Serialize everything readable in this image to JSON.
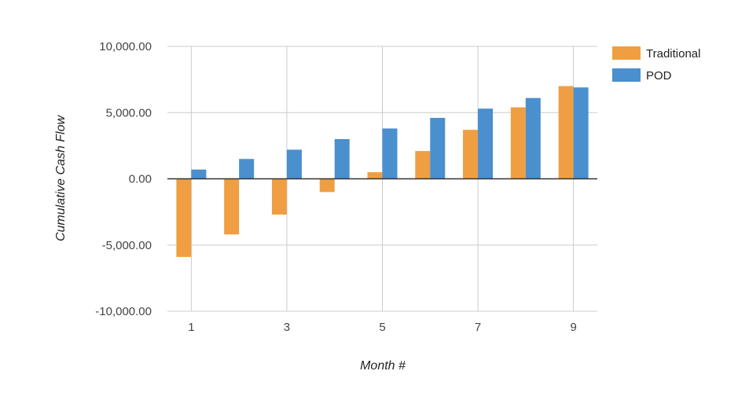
{
  "chart_data": {
    "type": "bar",
    "title": "",
    "xlabel": "Month #",
    "ylabel": "Cumulative Cash Flow",
    "x": [
      1,
      2,
      3,
      4,
      5,
      6,
      7,
      8,
      9
    ],
    "x_tick_labels": [
      "1",
      "3",
      "5",
      "7",
      "9"
    ],
    "x_tick_values": [
      1,
      3,
      5,
      7,
      9
    ],
    "ylim": [
      -10000,
      10000
    ],
    "y_ticks": [
      10000,
      5000,
      0,
      -5000,
      -10000
    ],
    "y_tick_labels": [
      "10,000.00",
      "5,000.00",
      "0.00",
      "-5,000.00",
      "-10,000.00"
    ],
    "grid": true,
    "legend_position": "right",
    "series": [
      {
        "name": "Traditional",
        "color": "#EF9F42",
        "values": [
          -5900,
          -4200,
          -2700,
          -1000,
          500,
          2100,
          3700,
          5400,
          7000
        ]
      },
      {
        "name": "POD",
        "color": "#4A8FCE",
        "values": [
          700,
          1500,
          2200,
          3000,
          3800,
          4600,
          5300,
          6100,
          6900
        ]
      }
    ]
  }
}
